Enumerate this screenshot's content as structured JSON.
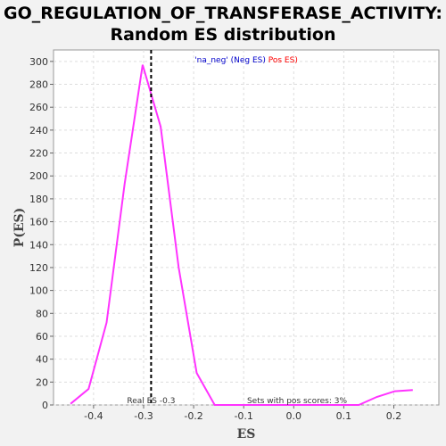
{
  "chart_data": {
    "type": "line",
    "title": "GO_REGULATION_OF_TRANSFERASE_ACTIVITY:",
    "subtitle": "Random ES distribution",
    "xlabel": "ES",
    "ylabel": "P(ES)",
    "xlim": [
      -0.48,
      0.29
    ],
    "ylim": [
      0,
      310
    ],
    "xticks": [
      -0.4,
      -0.3,
      -0.2,
      -0.1,
      0.0,
      0.1,
      0.2
    ],
    "xtick_labels": [
      "-0.4",
      "-0.3",
      "-0.2",
      "-0.1",
      "0.0",
      "0.1",
      "0.2"
    ],
    "yticks": [
      0,
      20,
      40,
      60,
      80,
      100,
      120,
      140,
      160,
      180,
      200,
      220,
      240,
      260,
      280,
      300
    ],
    "ytick_labels": [
      "0",
      "20",
      "40",
      "60",
      "80",
      "100",
      "120",
      "140",
      "160",
      "180",
      "200",
      "220",
      "240",
      "260",
      "280",
      "300"
    ],
    "grid": true,
    "series": [
      {
        "color": "#ff33ff",
        "x": [
          -0.446,
          -0.41,
          -0.374,
          -0.338,
          -0.302,
          -0.266,
          -0.23,
          -0.194,
          -0.158,
          -0.122,
          -0.086,
          -0.05,
          -0.014,
          0.022,
          0.058,
          0.094,
          0.13,
          0.166,
          0.202,
          0.238
        ],
        "y": [
          1,
          14,
          72,
          193,
          297,
          243,
          120,
          28,
          0,
          0,
          0,
          0,
          0,
          0,
          0,
          0,
          0,
          7,
          12,
          13
        ]
      }
    ],
    "real_es": -0.285,
    "real_es_label": "Real ES -0.3",
    "pos_scores_label": "Sets with pos scores: 3%",
    "legend": {
      "position": "top",
      "items": [
        {
          "text": "'na_neg'",
          "color": "#0000cc"
        },
        {
          "text": " (Neg ES)",
          "color": "#0000cc"
        },
        {
          "text": " Pos ES)",
          "color": "#ff0000"
        }
      ]
    }
  }
}
